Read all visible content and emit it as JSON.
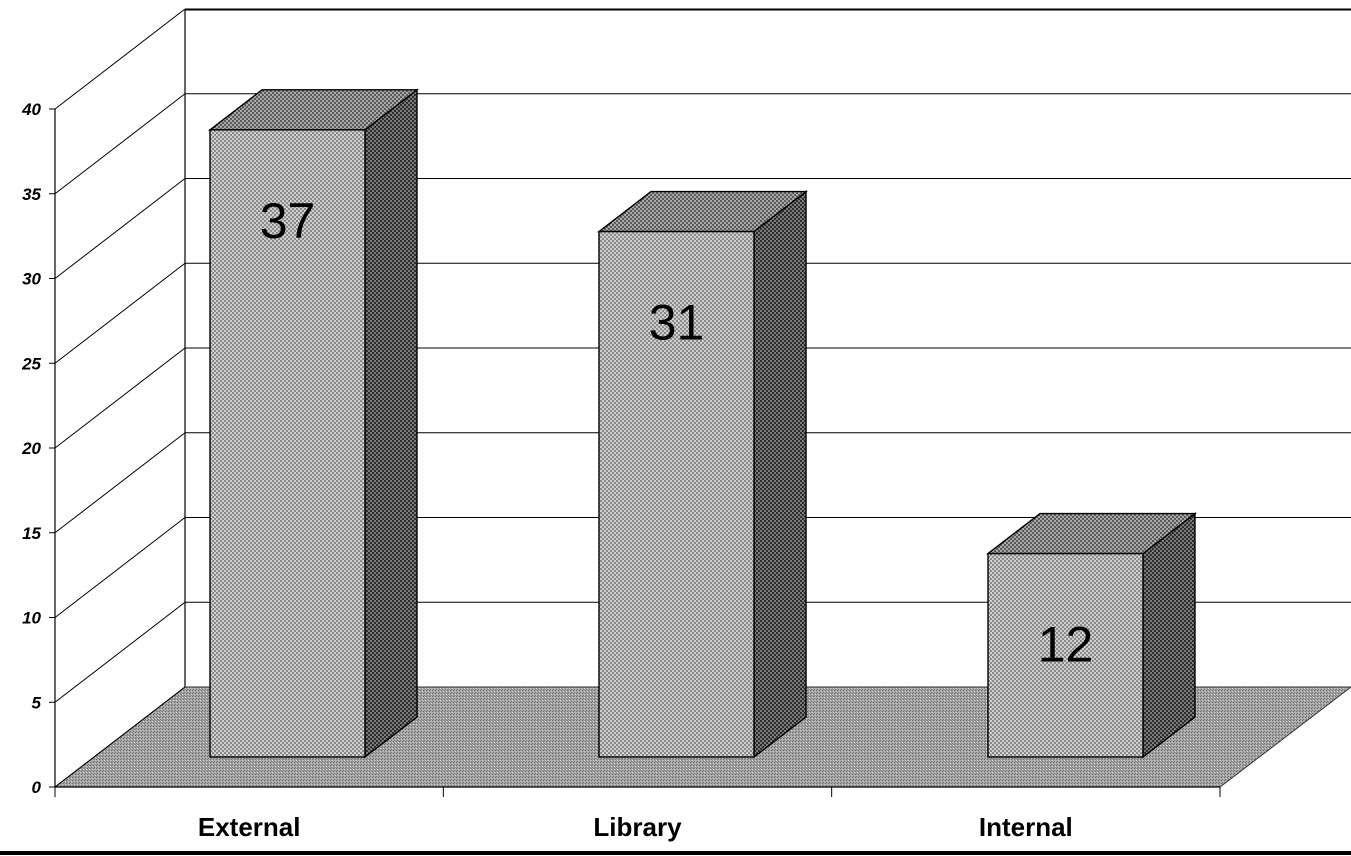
{
  "chart_data": {
    "type": "bar",
    "style": "3d",
    "categories": [
      "External",
      "Library",
      "Internal"
    ],
    "values": [
      37,
      31,
      12
    ],
    "data_labels": [
      "37",
      "31",
      "12"
    ],
    "y_ticks": [
      "0",
      "5",
      "10",
      "15",
      "20",
      "25",
      "30",
      "35",
      "40"
    ],
    "ylim": [
      0,
      45
    ],
    "grid": true,
    "legend": "none",
    "colors": {
      "bar_front": "#b8b8b8",
      "bar_top": "#8f8f8f",
      "bar_side": "#5e5e5e",
      "floor": "#9a9a9a"
    }
  }
}
